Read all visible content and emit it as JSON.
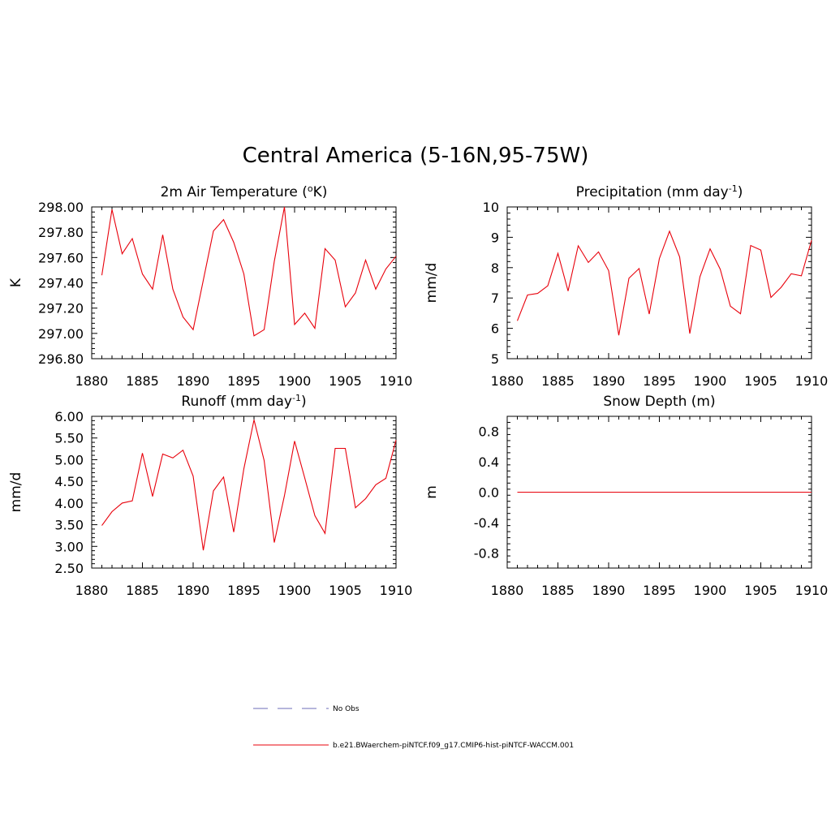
{
  "title": "Central America (5-16N,95-75W)",
  "legend": {
    "obs_label": "No Obs",
    "model_label": "b.e21.BWaerchem-piNTCF.f09_g17.CMIP6-hist-piNTCF-WACCM.001",
    "obs_color": "#8a8ac8",
    "model_color": "#e8000b"
  },
  "chart_data": [
    {
      "type": "line",
      "title_main": "2m Air Temperature (",
      "title_sup": "o",
      "title_end": "K)",
      "ylabel": "K",
      "xlim": [
        1880,
        1910
      ],
      "ylim": [
        296.8,
        298.0
      ],
      "xticks": [
        1880,
        1885,
        1890,
        1895,
        1900,
        1905,
        1910
      ],
      "xtick_labels": [
        "1880",
        "1885",
        "1890",
        "1895",
        "1900",
        "1905",
        "1910"
      ],
      "yticks": [
        296.8,
        297.0,
        297.2,
        297.4,
        297.6,
        297.8,
        298.0
      ],
      "ytick_labels": [
        "296.80",
        "297.00",
        "297.20",
        "297.40",
        "297.60",
        "297.80",
        "298.00"
      ],
      "x": [
        1881,
        1882,
        1883,
        1884,
        1885,
        1886,
        1887,
        1888,
        1889,
        1890,
        1891,
        1892,
        1893,
        1894,
        1895,
        1896,
        1897,
        1898,
        1899,
        1900,
        1901,
        1902,
        1903,
        1904,
        1905,
        1906,
        1907,
        1908,
        1909,
        1910
      ],
      "values": [
        297.46,
        297.98,
        297.63,
        297.75,
        297.47,
        297.35,
        297.78,
        297.35,
        297.13,
        297.03,
        297.42,
        297.81,
        297.9,
        297.72,
        297.47,
        296.98,
        297.03,
        297.57,
        298.0,
        297.07,
        297.16,
        297.04,
        297.67,
        297.58,
        297.21,
        297.32,
        297.58,
        297.35,
        297.51,
        297.61
      ]
    },
    {
      "type": "line",
      "title_main": "Precipitation (mm day",
      "title_sup": "-1",
      "title_end": ")",
      "ylabel": "mm/d",
      "xlim": [
        1880,
        1910
      ],
      "ylim": [
        5,
        10
      ],
      "xticks": [
        1880,
        1885,
        1890,
        1895,
        1900,
        1905,
        1910
      ],
      "xtick_labels": [
        "1880",
        "1885",
        "1890",
        "1895",
        "1900",
        "1905",
        "1910"
      ],
      "yticks": [
        5,
        6,
        7,
        8,
        9,
        10
      ],
      "ytick_labels": [
        "5",
        "6",
        "7",
        "8",
        "9",
        "10"
      ],
      "x": [
        1881,
        1882,
        1883,
        1884,
        1885,
        1886,
        1887,
        1888,
        1889,
        1890,
        1891,
        1892,
        1893,
        1894,
        1895,
        1896,
        1897,
        1898,
        1899,
        1900,
        1901,
        1902,
        1903,
        1904,
        1905,
        1906,
        1907,
        1908,
        1909,
        1910
      ],
      "values": [
        6.25,
        7.1,
        7.15,
        7.4,
        8.47,
        7.23,
        8.72,
        8.17,
        8.52,
        7.9,
        5.77,
        7.65,
        7.97,
        6.47,
        8.3,
        9.2,
        8.35,
        5.83,
        7.7,
        8.62,
        7.95,
        6.73,
        6.48,
        8.73,
        8.58,
        7.02,
        7.35,
        7.8,
        7.73,
        8.9
      ]
    },
    {
      "type": "line",
      "title_main": "Runoff (mm day",
      "title_sup": "-1",
      "title_end": ")",
      "ylabel": "mm/d",
      "xlim": [
        1880,
        1910
      ],
      "ylim": [
        2.5,
        6.0
      ],
      "xticks": [
        1880,
        1885,
        1890,
        1895,
        1900,
        1905,
        1910
      ],
      "xtick_labels": [
        "1880",
        "1885",
        "1890",
        "1895",
        "1900",
        "1905",
        "1910"
      ],
      "yticks": [
        2.5,
        3.0,
        3.5,
        4.0,
        4.5,
        5.0,
        5.5,
        6.0
      ],
      "ytick_labels": [
        "2.50",
        "3.00",
        "3.50",
        "4.00",
        "4.50",
        "5.00",
        "5.50",
        "6.00"
      ],
      "x": [
        1881,
        1882,
        1883,
        1884,
        1885,
        1886,
        1887,
        1888,
        1889,
        1890,
        1891,
        1892,
        1893,
        1894,
        1895,
        1896,
        1897,
        1898,
        1899,
        1900,
        1901,
        1902,
        1903,
        1904,
        1905,
        1906,
        1907,
        1908,
        1909,
        1910
      ],
      "values": [
        3.48,
        3.8,
        4.0,
        4.05,
        5.15,
        4.15,
        5.13,
        5.04,
        5.22,
        4.62,
        2.91,
        4.28,
        4.6,
        3.33,
        4.79,
        5.92,
        4.98,
        3.09,
        4.17,
        5.43,
        4.58,
        3.71,
        3.3,
        5.26,
        5.26,
        3.89,
        4.1,
        4.42,
        4.57,
        5.45
      ]
    },
    {
      "type": "line",
      "title_main": "Snow Depth (m)",
      "title_sup": "",
      "title_end": "",
      "ylabel": "m",
      "xlim": [
        1880,
        1910
      ],
      "ylim": [
        -1.0,
        1.0
      ],
      "xticks": [
        1880,
        1885,
        1890,
        1895,
        1900,
        1905,
        1910
      ],
      "xtick_labels": [
        "1880",
        "1885",
        "1890",
        "1895",
        "1900",
        "1905",
        "1910"
      ],
      "yticks": [
        -0.8,
        -0.4,
        0.0,
        0.4,
        0.8
      ],
      "ytick_labels": [
        "-0.8",
        "-0.4",
        "0.0",
        "0.4",
        "0.8"
      ],
      "x": [
        1881,
        1910
      ],
      "values": [
        0.0,
        0.0
      ]
    }
  ]
}
